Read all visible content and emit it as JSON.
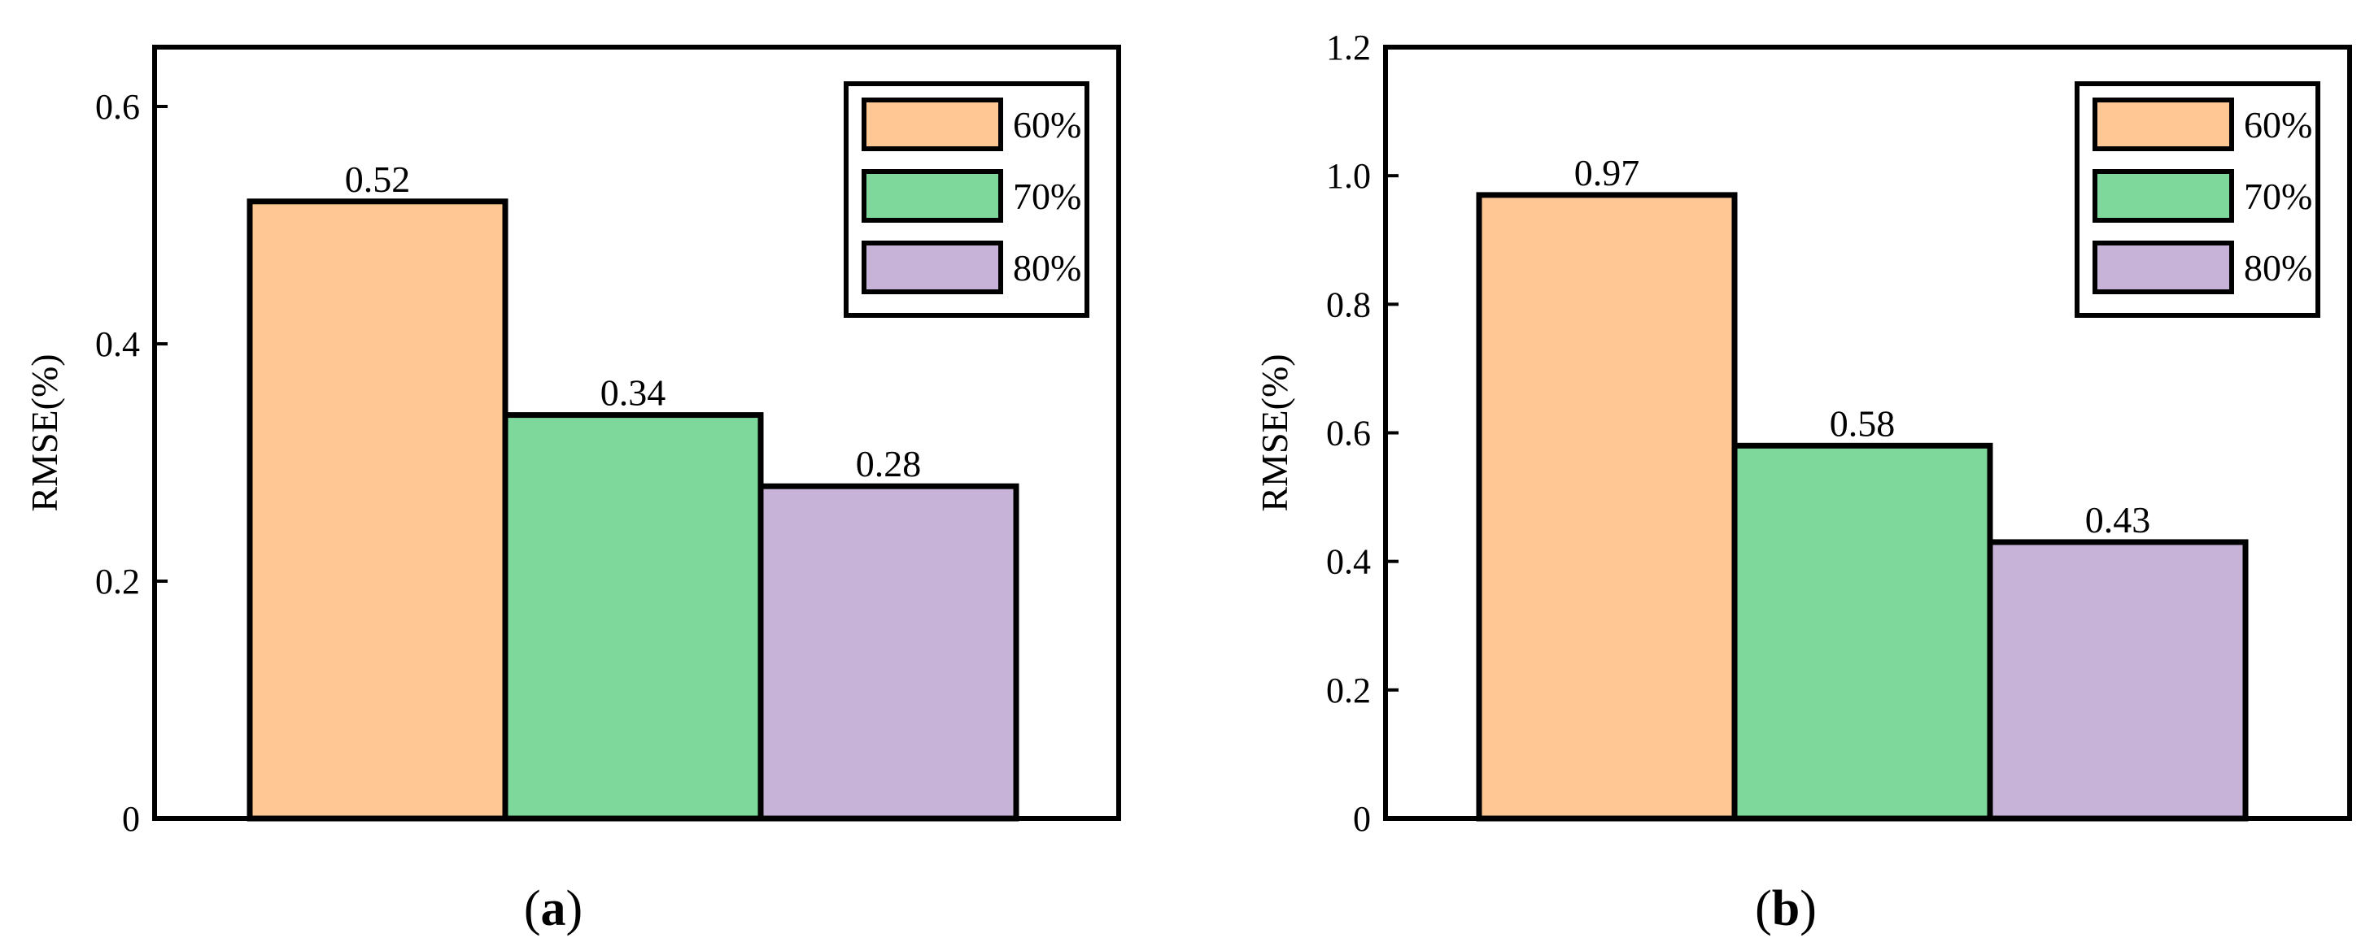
{
  "chart_data": [
    {
      "type": "bar",
      "panel_label": "a",
      "ylabel": "RMSE(%)",
      "xlabel": "",
      "ylim": [
        0,
        0.65
      ],
      "yticks": [
        "0",
        "0.2",
        "0.4",
        "0.6"
      ],
      "categories": [
        "60%",
        "70%",
        "80%"
      ],
      "values": [
        0.52,
        0.34,
        0.28
      ],
      "value_labels": [
        "0.52",
        "0.34",
        "0.28"
      ],
      "colors": [
        "#FFC793",
        "#7FD89B",
        "#C8B3D8"
      ],
      "legend": {
        "position": "top-right",
        "entries": [
          "60%",
          "70%",
          "80%"
        ]
      },
      "grid": false
    },
    {
      "type": "bar",
      "panel_label": "b",
      "ylabel": "RMSE(%)",
      "xlabel": "",
      "ylim": [
        0,
        1.2
      ],
      "yticks": [
        "0",
        "0.2",
        "0.4",
        "0.6",
        "0.8",
        "1.0",
        "1.2"
      ],
      "categories": [
        "60%",
        "70%",
        "80%"
      ],
      "values": [
        0.97,
        0.58,
        0.43
      ],
      "value_labels": [
        "0.97",
        "0.58",
        "0.43"
      ],
      "colors": [
        "#FFC793",
        "#7FD89B",
        "#C8B3D8"
      ],
      "legend": {
        "position": "top-right",
        "entries": [
          "60%",
          "70%",
          "80%"
        ]
      },
      "grid": false
    }
  ]
}
